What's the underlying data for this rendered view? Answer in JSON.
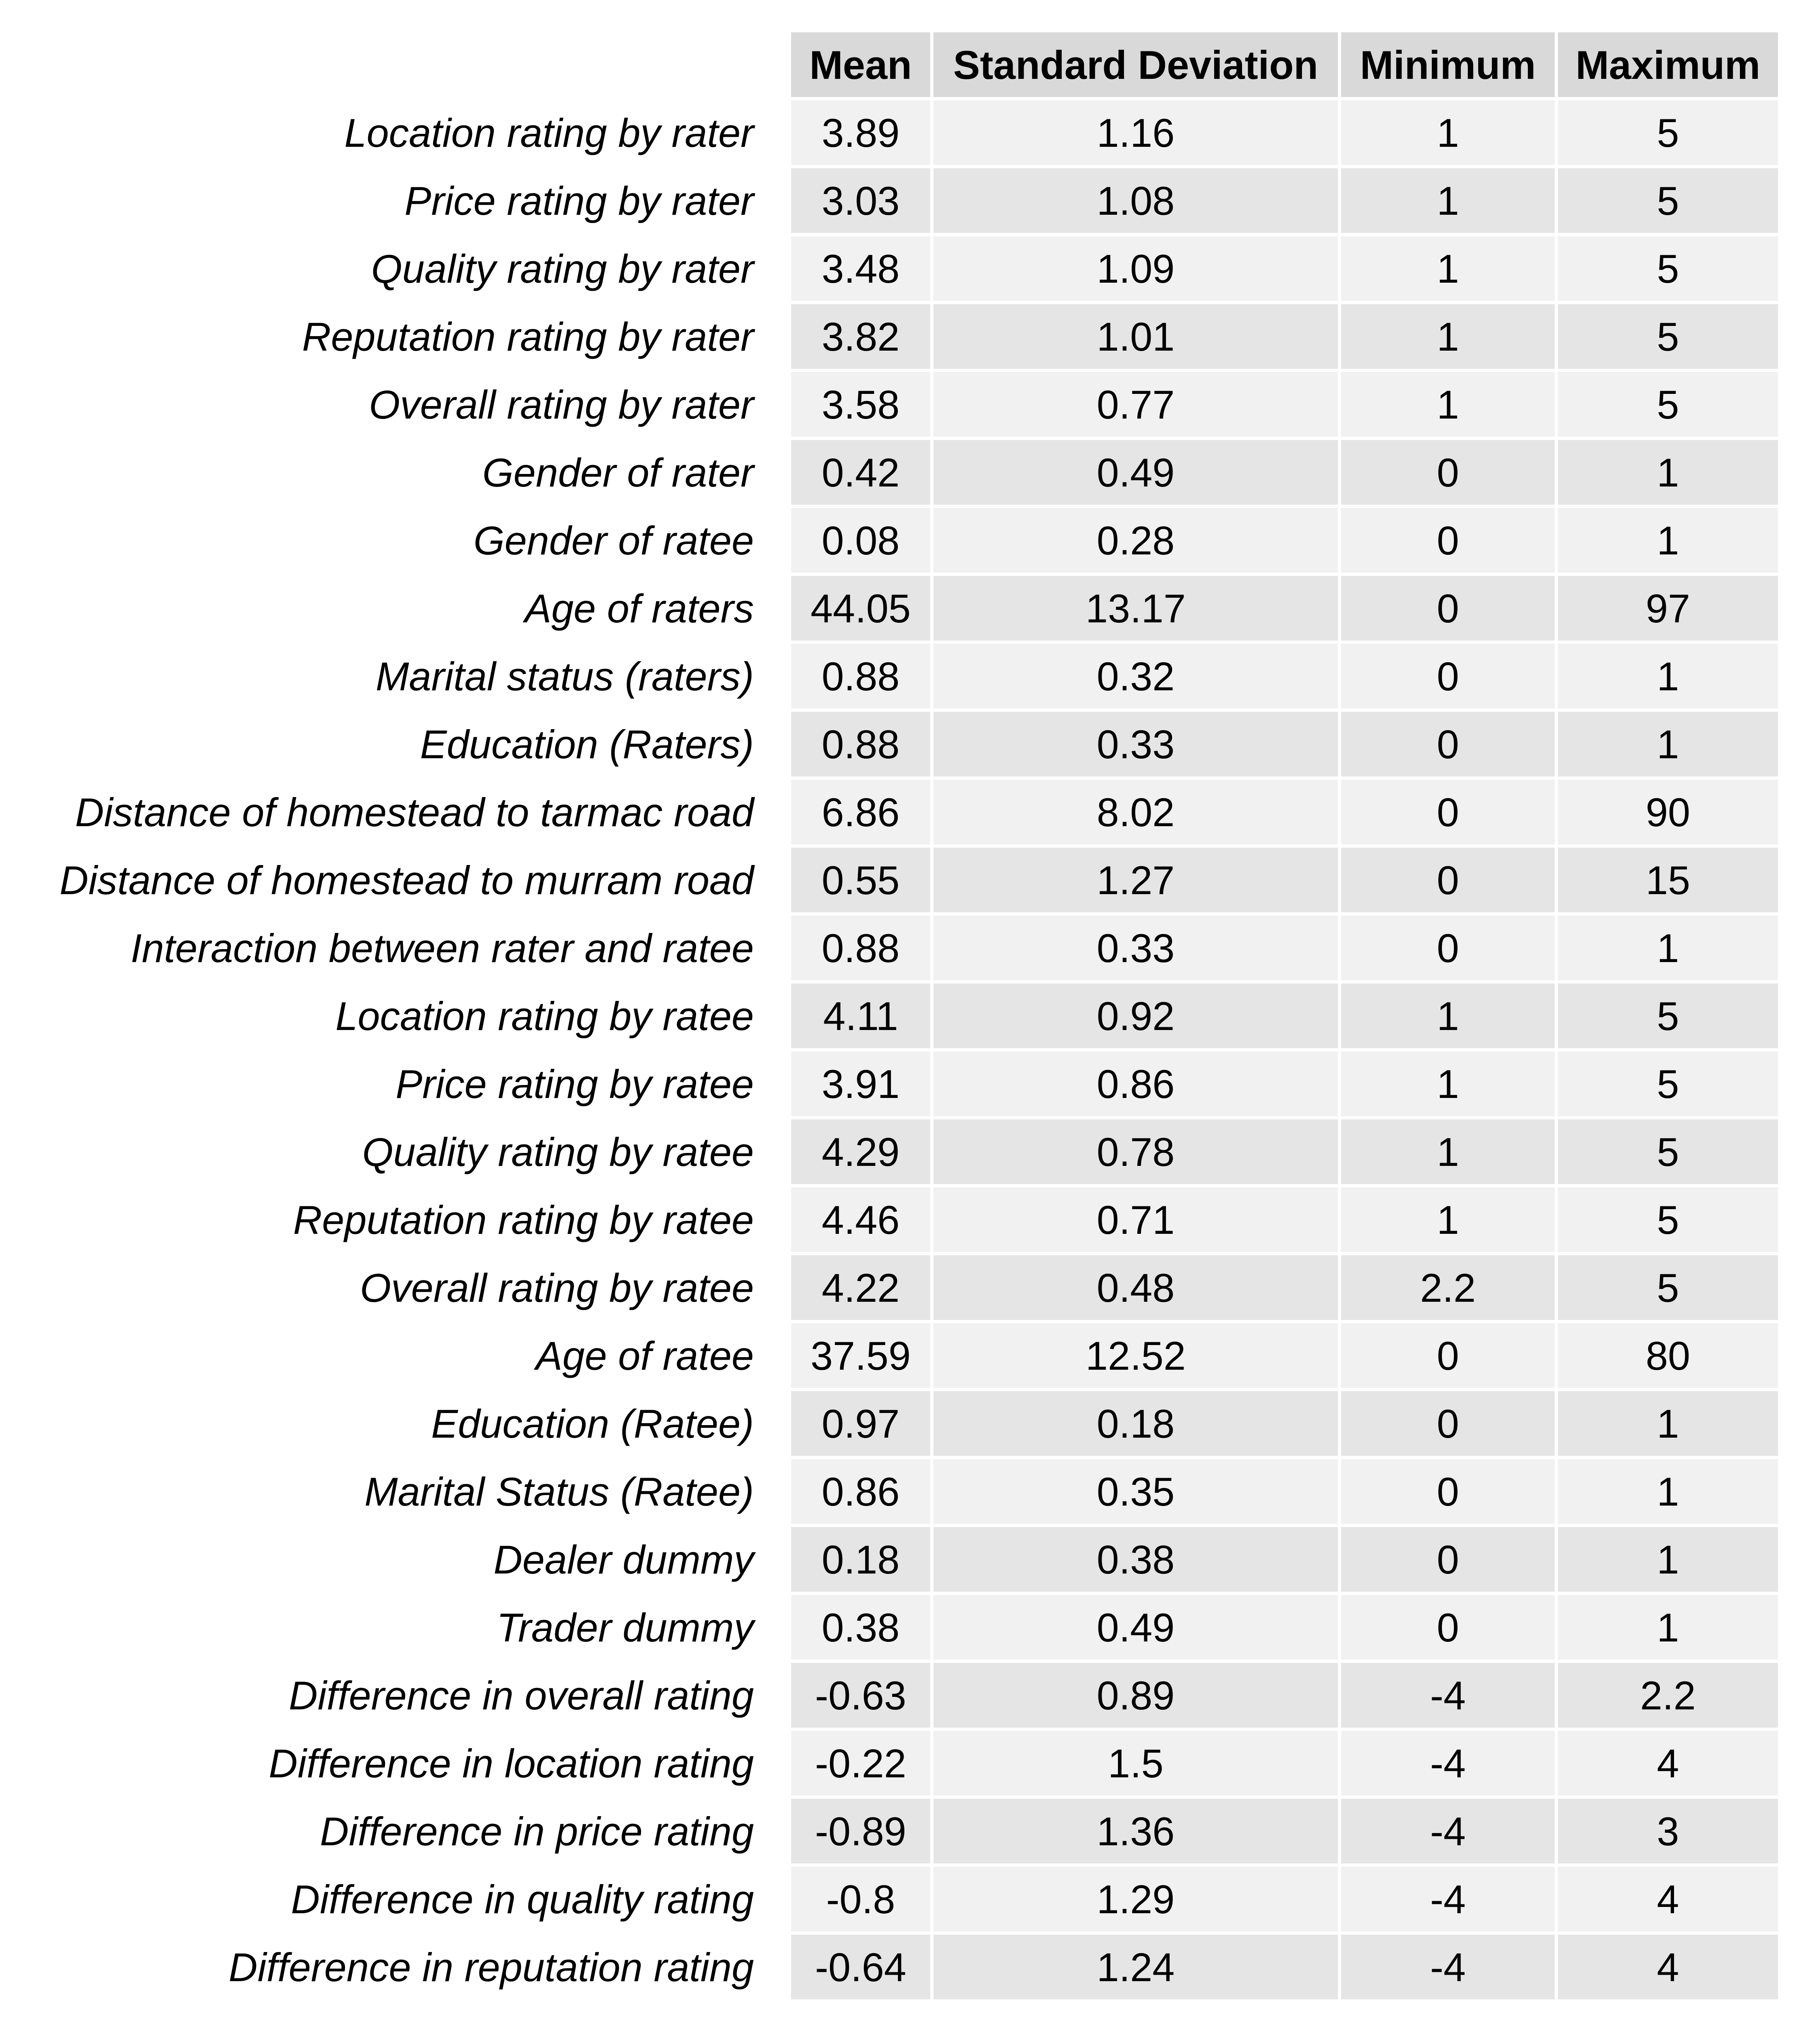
{
  "chart_data": {
    "type": "table",
    "columns": [
      "Mean",
      "Standard Deviation",
      "Minimum",
      "Maximum"
    ],
    "rows": [
      {
        "label": "Location rating by rater",
        "values": [
          "3.89",
          "1.16",
          "1",
          "5"
        ]
      },
      {
        "label": "Price rating by rater",
        "values": [
          "3.03",
          "1.08",
          "1",
          "5"
        ]
      },
      {
        "label": "Quality rating by rater",
        "values": [
          "3.48",
          "1.09",
          "1",
          "5"
        ]
      },
      {
        "label": "Reputation rating by rater",
        "values": [
          "3.82",
          "1.01",
          "1",
          "5"
        ]
      },
      {
        "label": "Overall rating by rater",
        "values": [
          "3.58",
          "0.77",
          "1",
          "5"
        ]
      },
      {
        "label": "Gender of rater",
        "values": [
          "0.42",
          "0.49",
          "0",
          "1"
        ]
      },
      {
        "label": "Gender of ratee",
        "values": [
          "0.08",
          "0.28",
          "0",
          "1"
        ]
      },
      {
        "label": "Age of raters",
        "values": [
          "44.05",
          "13.17",
          "0",
          "97"
        ]
      },
      {
        "label": "Marital status (raters)",
        "values": [
          "0.88",
          "0.32",
          "0",
          "1"
        ]
      },
      {
        "label": "Education (Raters)",
        "values": [
          "0.88",
          "0.33",
          "0",
          "1"
        ]
      },
      {
        "label": "Distance of homestead to tarmac road",
        "values": [
          "6.86",
          "8.02",
          "0",
          "90"
        ]
      },
      {
        "label": "Distance of homestead to murram road",
        "values": [
          "0.55",
          "1.27",
          "0",
          "15"
        ]
      },
      {
        "label": "Interaction between rater and ratee",
        "values": [
          "0.88",
          "0.33",
          "0",
          "1"
        ]
      },
      {
        "label": "Location rating by ratee",
        "values": [
          "4.11",
          "0.92",
          "1",
          "5"
        ]
      },
      {
        "label": "Price rating by ratee",
        "values": [
          "3.91",
          "0.86",
          "1",
          "5"
        ]
      },
      {
        "label": "Quality rating by ratee",
        "values": [
          "4.29",
          "0.78",
          "1",
          "5"
        ]
      },
      {
        "label": "Reputation rating by ratee",
        "values": [
          "4.46",
          "0.71",
          "1",
          "5"
        ]
      },
      {
        "label": "Overall rating by ratee",
        "values": [
          "4.22",
          "0.48",
          "2.2",
          "5"
        ]
      },
      {
        "label": "Age of ratee",
        "values": [
          "37.59",
          "12.52",
          "0",
          "80"
        ]
      },
      {
        "label": "Education (Ratee)",
        "values": [
          "0.97",
          "0.18",
          "0",
          "1"
        ]
      },
      {
        "label": "Marital Status (Ratee)",
        "values": [
          "0.86",
          "0.35",
          "0",
          "1"
        ]
      },
      {
        "label": "Dealer dummy",
        "values": [
          "0.18",
          "0.38",
          "0",
          "1"
        ]
      },
      {
        "label": "Trader dummy",
        "values": [
          "0.38",
          "0.49",
          "0",
          "1"
        ]
      },
      {
        "label": "Difference in overall rating",
        "values": [
          "-0.63",
          "0.89",
          "-4",
          "2.2"
        ]
      },
      {
        "label": "Difference in location rating",
        "values": [
          "-0.22",
          "1.5",
          "-4",
          "4"
        ]
      },
      {
        "label": "Difference in price rating",
        "values": [
          "-0.89",
          "1.36",
          "-4",
          "3"
        ]
      },
      {
        "label": "Difference in quality rating",
        "values": [
          "-0.8",
          "1.29",
          "-4",
          "4"
        ]
      },
      {
        "label": "Difference in reputation rating",
        "values": [
          "-0.64",
          "1.24",
          "-4",
          "4"
        ]
      }
    ],
    "colors": {
      "header_fill": "#d9d9d9",
      "row_fill_light": "#f1f1f1",
      "row_fill_dark": "#e5e5e5"
    }
  }
}
